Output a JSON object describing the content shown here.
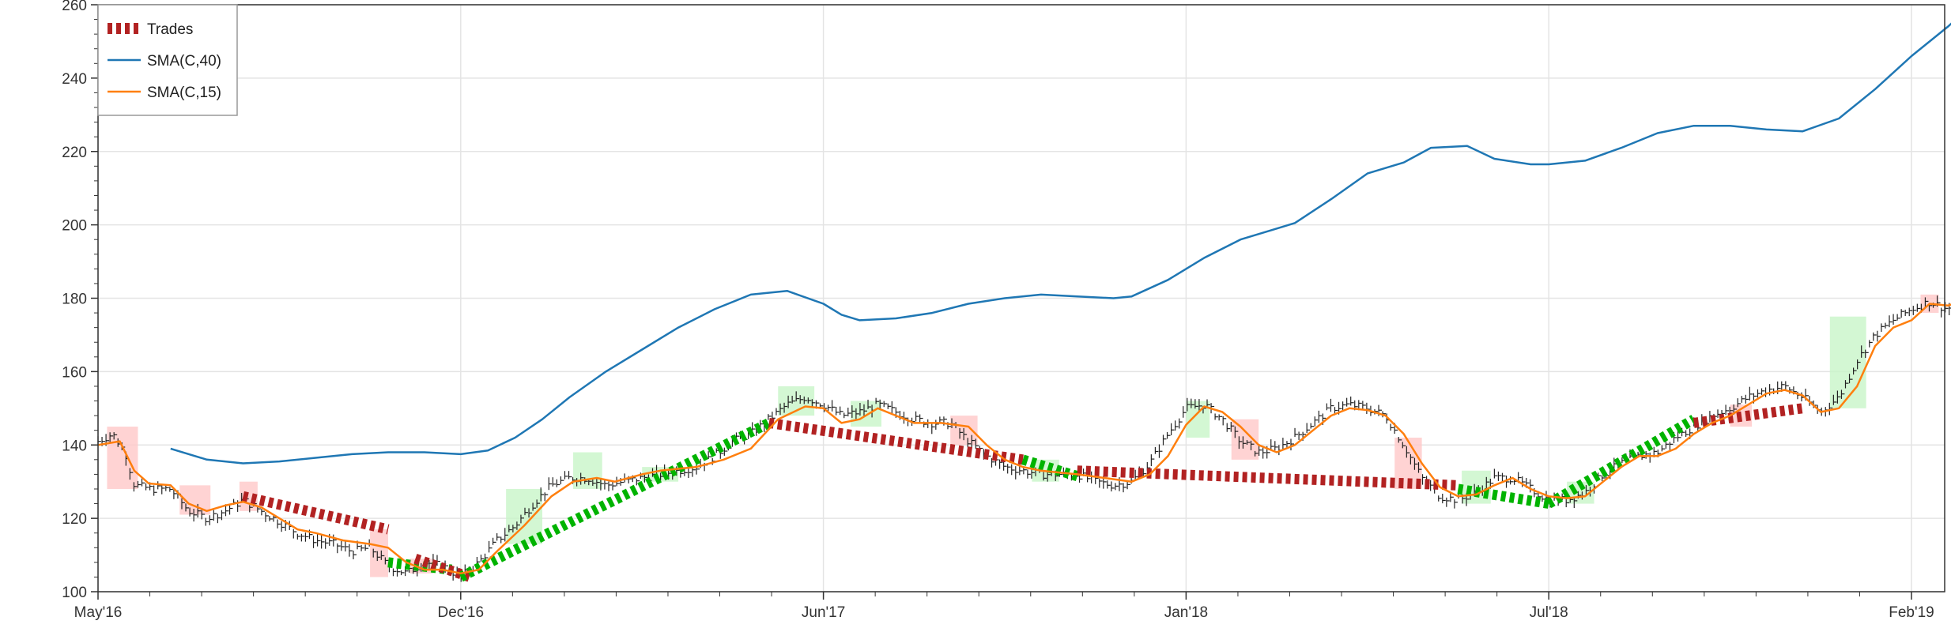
{
  "chart_data": {
    "type": "line",
    "title": "",
    "xlabel": "",
    "ylabel": "",
    "ylim": [
      100,
      260
    ],
    "yticks": [
      100,
      120,
      140,
      160,
      180,
      200,
      220,
      240,
      260
    ],
    "xlim": [
      0,
      1000
    ],
    "xticks": [
      {
        "x": 0,
        "label": "May'16"
      },
      {
        "x": 200,
        "label": "Dec'16"
      },
      {
        "x": 400,
        "label": "Jun'17"
      },
      {
        "x": 600,
        "label": "Jan'18"
      },
      {
        "x": 800,
        "label": "Jul'18"
      },
      {
        "x": 1000,
        "label": "Feb'19"
      }
    ],
    "grid": true,
    "legend_position": "top-left",
    "colors": {
      "sma40": "#1f77b4",
      "sma15": "#ff7f0e",
      "trade_loss": "#b22222",
      "trade_win": "#00b300",
      "price": "#222222",
      "band_loss": "#ffc8c8",
      "band_win": "#c8f5c8",
      "grid": "#e4e4e4"
    },
    "series": [
      {
        "name": "SMA(C,40)",
        "key": "sma40",
        "points": [
          [
            40,
            139
          ],
          [
            60,
            136
          ],
          [
            80,
            135
          ],
          [
            100,
            135.5
          ],
          [
            120,
            136.5
          ],
          [
            140,
            137.5
          ],
          [
            160,
            138
          ],
          [
            180,
            138
          ],
          [
            200,
            137.5
          ],
          [
            215,
            138.5
          ],
          [
            230,
            142
          ],
          [
            245,
            147
          ],
          [
            260,
            153
          ],
          [
            280,
            160
          ],
          [
            300,
            166
          ],
          [
            320,
            172
          ],
          [
            340,
            177
          ],
          [
            360,
            181
          ],
          [
            380,
            182
          ],
          [
            400,
            178.5
          ],
          [
            410,
            175.5
          ],
          [
            420,
            174
          ],
          [
            440,
            174.5
          ],
          [
            460,
            176
          ],
          [
            480,
            178.5
          ],
          [
            500,
            180
          ],
          [
            520,
            181
          ],
          [
            540,
            180.5
          ],
          [
            560,
            180
          ],
          [
            570,
            180.5
          ],
          [
            590,
            185
          ],
          [
            610,
            191
          ],
          [
            630,
            196
          ],
          [
            650,
            199
          ],
          [
            660,
            200.5
          ],
          [
            680,
            207
          ],
          [
            700,
            214
          ],
          [
            720,
            217
          ],
          [
            735,
            221
          ],
          [
            755,
            221.5
          ],
          [
            770,
            218
          ],
          [
            790,
            216.5
          ],
          [
            800,
            216.5
          ],
          [
            820,
            217.5
          ],
          [
            840,
            221
          ],
          [
            860,
            225
          ],
          [
            880,
            227
          ],
          [
            900,
            227
          ],
          [
            920,
            226
          ],
          [
            940,
            225.5
          ],
          [
            960,
            229
          ],
          [
            980,
            237
          ],
          [
            1000,
            246
          ],
          [
            1020,
            254
          ],
          [
            1030,
            258.5
          ]
        ]
      },
      {
        "name": "SMA(C,15)",
        "key": "sma15",
        "points": [
          [
            0,
            140
          ],
          [
            12,
            141
          ],
          [
            20,
            133
          ],
          [
            28,
            129.5
          ],
          [
            40,
            129
          ],
          [
            50,
            124
          ],
          [
            60,
            122
          ],
          [
            70,
            123.5
          ],
          [
            80,
            124.5
          ],
          [
            90,
            123
          ],
          [
            100,
            120
          ],
          [
            110,
            117
          ],
          [
            120,
            116
          ],
          [
            135,
            114
          ],
          [
            150,
            113
          ],
          [
            160,
            112
          ],
          [
            170,
            108
          ],
          [
            180,
            106
          ],
          [
            190,
            106
          ],
          [
            200,
            105
          ],
          [
            210,
            106
          ],
          [
            220,
            111
          ],
          [
            235,
            118
          ],
          [
            250,
            126
          ],
          [
            262,
            130
          ],
          [
            275,
            131
          ],
          [
            285,
            130
          ],
          [
            300,
            132
          ],
          [
            310,
            133
          ],
          [
            320,
            133.5
          ],
          [
            330,
            134
          ],
          [
            345,
            136
          ],
          [
            360,
            139
          ],
          [
            375,
            147
          ],
          [
            390,
            150.5
          ],
          [
            400,
            150
          ],
          [
            410,
            146
          ],
          [
            420,
            147
          ],
          [
            430,
            150
          ],
          [
            440,
            148
          ],
          [
            450,
            146
          ],
          [
            465,
            146
          ],
          [
            480,
            145
          ],
          [
            490,
            140
          ],
          [
            500,
            136
          ],
          [
            510,
            134
          ],
          [
            520,
            133
          ],
          [
            530,
            132.5
          ],
          [
            540,
            132
          ],
          [
            555,
            131
          ],
          [
            570,
            130
          ],
          [
            580,
            132
          ],
          [
            590,
            137
          ],
          [
            600,
            145.5
          ],
          [
            610,
            150.5
          ],
          [
            620,
            149
          ],
          [
            630,
            145
          ],
          [
            640,
            140
          ],
          [
            650,
            138
          ],
          [
            660,
            140
          ],
          [
            670,
            144
          ],
          [
            680,
            148
          ],
          [
            690,
            150
          ],
          [
            700,
            149.5
          ],
          [
            710,
            148
          ],
          [
            720,
            143
          ],
          [
            730,
            135
          ],
          [
            740,
            128.5
          ],
          [
            750,
            126
          ],
          [
            760,
            126.5
          ],
          [
            770,
            129
          ],
          [
            780,
            131
          ],
          [
            790,
            128
          ],
          [
            800,
            126
          ],
          [
            810,
            125.5
          ],
          [
            820,
            126
          ],
          [
            830,
            130
          ],
          [
            840,
            134
          ],
          [
            850,
            137
          ],
          [
            860,
            137
          ],
          [
            870,
            139
          ],
          [
            880,
            143
          ],
          [
            890,
            146
          ],
          [
            900,
            148
          ],
          [
            910,
            151
          ],
          [
            920,
            154
          ],
          [
            930,
            155
          ],
          [
            940,
            153.5
          ],
          [
            950,
            149
          ],
          [
            960,
            150
          ],
          [
            970,
            156
          ],
          [
            980,
            167
          ],
          [
            990,
            172
          ],
          [
            1000,
            174
          ],
          [
            1010,
            178.5
          ],
          [
            1020,
            178
          ],
          [
            1030,
            179.5
          ]
        ]
      }
    ],
    "trades": [
      {
        "from": [
          80,
          126
        ],
        "to": [
          160,
          117
        ],
        "result": "loss"
      },
      {
        "from": [
          160,
          108
        ],
        "to": [
          195,
          106
        ],
        "result": "win"
      },
      {
        "from": [
          175,
          109
        ],
        "to": [
          205,
          104
        ],
        "result": "loss"
      },
      {
        "from": [
          200,
          104
        ],
        "to": [
          370,
          146
        ],
        "result": "win"
      },
      {
        "from": [
          370,
          146
        ],
        "to": [
          510,
          136
        ],
        "result": "loss"
      },
      {
        "from": [
          510,
          136
        ],
        "to": [
          540,
          131.5
        ],
        "result": "win"
      },
      {
        "from": [
          540,
          133
        ],
        "to": [
          750,
          129
        ],
        "result": "loss"
      },
      {
        "from": [
          750,
          128
        ],
        "to": [
          800,
          124
        ],
        "result": "win"
      },
      {
        "from": [
          800,
          124
        ],
        "to": [
          880,
          147
        ],
        "result": "win"
      },
      {
        "from": [
          880,
          146
        ],
        "to": [
          940,
          150
        ],
        "result": "loss"
      }
    ],
    "bands": [
      {
        "x0": 5,
        "x1": 22,
        "y0": 128,
        "y1": 145,
        "result": "loss"
      },
      {
        "x0": 45,
        "x1": 62,
        "y0": 121,
        "y1": 129,
        "result": "loss"
      },
      {
        "x0": 78,
        "x1": 88,
        "y0": 122,
        "y1": 130,
        "result": "loss"
      },
      {
        "x0": 150,
        "x1": 160,
        "y0": 104,
        "y1": 117,
        "result": "loss"
      },
      {
        "x0": 172,
        "x1": 185,
        "y0": 105,
        "y1": 109,
        "result": "loss"
      },
      {
        "x0": 225,
        "x1": 245,
        "y0": 113,
        "y1": 128,
        "result": "win"
      },
      {
        "x0": 262,
        "x1": 278,
        "y0": 128,
        "y1": 138,
        "result": "win"
      },
      {
        "x0": 300,
        "x1": 320,
        "y0": 130,
        "y1": 134,
        "result": "win"
      },
      {
        "x0": 375,
        "x1": 395,
        "y0": 148,
        "y1": 156,
        "result": "win"
      },
      {
        "x0": 415,
        "x1": 432,
        "y0": 145,
        "y1": 152,
        "result": "win"
      },
      {
        "x0": 470,
        "x1": 485,
        "y0": 140,
        "y1": 148,
        "result": "loss"
      },
      {
        "x0": 515,
        "x1": 530,
        "y0": 130,
        "y1": 136,
        "result": "win"
      },
      {
        "x0": 600,
        "x1": 613,
        "y0": 142,
        "y1": 152,
        "result": "win"
      },
      {
        "x0": 625,
        "x1": 640,
        "y0": 136,
        "y1": 147,
        "result": "loss"
      },
      {
        "x0": 715,
        "x1": 730,
        "y0": 128,
        "y1": 142,
        "result": "loss"
      },
      {
        "x0": 752,
        "x1": 768,
        "y0": 124,
        "y1": 133,
        "result": "win"
      },
      {
        "x0": 810,
        "x1": 825,
        "y0": 124,
        "y1": 130,
        "result": "win"
      },
      {
        "x0": 900,
        "x1": 912,
        "y0": 145,
        "y1": 151,
        "result": "loss"
      },
      {
        "x0": 955,
        "x1": 975,
        "y0": 150,
        "y1": 175,
        "result": "win"
      },
      {
        "x0": 1005,
        "x1": 1015,
        "y0": 176,
        "y1": 181,
        "result": "loss"
      },
      {
        "x0": 1025,
        "x1": 1032,
        "y0": 177,
        "y1": 182,
        "result": "win"
      }
    ],
    "price_anchors": [
      [
        0,
        141
      ],
      [
        8,
        143
      ],
      [
        15,
        138
      ],
      [
        20,
        129
      ],
      [
        30,
        128
      ],
      [
        40,
        128
      ],
      [
        50,
        122
      ],
      [
        60,
        120
      ],
      [
        70,
        122
      ],
      [
        80,
        125
      ],
      [
        90,
        122
      ],
      [
        100,
        119
      ],
      [
        110,
        116
      ],
      [
        120,
        114
      ],
      [
        130,
        113
      ],
      [
        140,
        111
      ],
      [
        150,
        112
      ],
      [
        160,
        107
      ],
      [
        170,
        105
      ],
      [
        180,
        108
      ],
      [
        190,
        107
      ],
      [
        200,
        104
      ],
      [
        210,
        108
      ],
      [
        220,
        114
      ],
      [
        230,
        118
      ],
      [
        240,
        124
      ],
      [
        250,
        129
      ],
      [
        260,
        131
      ],
      [
        270,
        131
      ],
      [
        280,
        129
      ],
      [
        290,
        130
      ],
      [
        300,
        131
      ],
      [
        310,
        132
      ],
      [
        320,
        133
      ],
      [
        330,
        134
      ],
      [
        340,
        137
      ],
      [
        350,
        141
      ],
      [
        360,
        143
      ],
      [
        370,
        147
      ],
      [
        380,
        151
      ],
      [
        390,
        153
      ],
      [
        400,
        151
      ],
      [
        410,
        148
      ],
      [
        420,
        149
      ],
      [
        430,
        151
      ],
      [
        440,
        149
      ],
      [
        450,
        147
      ],
      [
        460,
        146
      ],
      [
        470,
        146
      ],
      [
        480,
        141
      ],
      [
        490,
        137
      ],
      [
        500,
        134
      ],
      [
        510,
        133
      ],
      [
        520,
        132
      ],
      [
        530,
        132
      ],
      [
        540,
        132
      ],
      [
        550,
        130
      ],
      [
        560,
        129
      ],
      [
        570,
        130
      ],
      [
        580,
        135
      ],
      [
        590,
        143
      ],
      [
        600,
        150
      ],
      [
        610,
        151
      ],
      [
        620,
        147
      ],
      [
        630,
        141
      ],
      [
        640,
        138
      ],
      [
        650,
        139
      ],
      [
        660,
        142
      ],
      [
        670,
        146
      ],
      [
        680,
        150
      ],
      [
        690,
        151
      ],
      [
        700,
        150
      ],
      [
        710,
        148
      ],
      [
        720,
        140
      ],
      [
        730,
        131
      ],
      [
        740,
        126
      ],
      [
        750,
        125
      ],
      [
        760,
        127
      ],
      [
        770,
        131
      ],
      [
        780,
        131
      ],
      [
        790,
        128
      ],
      [
        800,
        125
      ],
      [
        810,
        125
      ],
      [
        820,
        127
      ],
      [
        830,
        132
      ],
      [
        840,
        135
      ],
      [
        850,
        137
      ],
      [
        860,
        138
      ],
      [
        870,
        142
      ],
      [
        880,
        145
      ],
      [
        890,
        148
      ],
      [
        900,
        150
      ],
      [
        910,
        153
      ],
      [
        920,
        155
      ],
      [
        930,
        156
      ],
      [
        940,
        153
      ],
      [
        950,
        149
      ],
      [
        960,
        153
      ],
      [
        970,
        163
      ],
      [
        980,
        170
      ],
      [
        990,
        174
      ],
      [
        1000,
        177
      ],
      [
        1010,
        179
      ],
      [
        1020,
        177
      ],
      [
        1030,
        181
      ]
    ],
    "legend": [
      {
        "label": "Trades",
        "key": "trades"
      },
      {
        "label": "SMA(C,40)",
        "key": "sma40"
      },
      {
        "label": "SMA(C,15)",
        "key": "sma15"
      }
    ]
  }
}
